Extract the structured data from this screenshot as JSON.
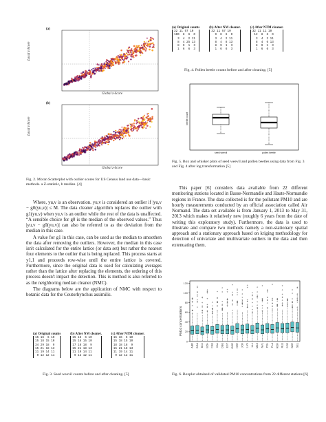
{
  "left_column": {
    "figure2": {
      "panel_a_label": "(a)",
      "panel_b_label": "(b)",
      "ylabel": "Local z-Score",
      "xlabel": "Global z-Score",
      "caption": "Fig. 2.   Moran Scatterplot with outlier scores for US Census land use data—basic methods. a Z-statistic, b median. [4]"
    },
    "paragraph1": "Where, yu,v is an observation. yu,v is considered an outlier if |yu,v − g0(yu,v)| ≤ M. The data cleaner algorithm replaces the outlier with g1(yu,v) when yu,v is an outlier while the rest of the data is unaffected. “A sensible choice for g0 is the median of the observed values.” Thus |yu,v − g0(yu,v)| can also be referred to as the deviation from the median in this case.",
    "paragraph2": "A value for g1 in this case, can be used as the median to smoothen the data after removing the outliers. However, the median in this case isn't calculated for the entire lattice (or data set) but rather the nearest four elements to the outlier that is being replaced. This process starts at y1,1 and proceeds row-wise until the entire lattice is covered. Furthermore, since the original data is used for calculating averages rather than the lattice after replacing the elements, the ordering of this process doesn't impact the detection. This is method is also referred to as the neighboring median cleaner (NMC).",
    "paragraph3": "The diagrams below are the application of NMC with respect to botanic data for the Ceutorhynchus assimilis.",
    "figure3": {
      "labels": [
        "(a) Original counts",
        "(b) After NM cleaner.",
        "(c) After NTM cleaner."
      ],
      "matrices": [
        "15 16  6 10\n15 18 15 10\n34 29 18  9\n15 21 18 13\n11 19 14 11\n 9 12 12 11",
        "15 16  6 10\n15 18 15 10\n17 18 18  9\n15 21 18 13\n11 19 14 11\n 9 12 12 11",
        "15 16  6 10\n15 18 15 10\n18 18 18  9\n15 21 18 13\n11 19 14 11\n 9 12 12 11"
      ],
      "caption": "Fig. 3.   Seed weevil counts before and after cleaning. [5]"
    }
  },
  "right_column": {
    "figure4": {
      "labels": [
        "(a) Original counts",
        "(b) After NM cleaner.",
        "(c) After NTM cleaner."
      ],
      "matrices": [
        "32 11 57 10\n100  8  6  0\n  3  4  2 11\n  8  4 25 13\n  8  9  1  3\n  1  6  6  3",
        "32 11 57 10\n  9  8  6  0\n  3  4  2 11\n  8  4  8 13\n  8  9  1  3\n  1  6  6  3",
        "32 11 11 10\n 12  8  6  0\n  3  4  2 11\n  8  4  6 13\n  8  9  1  3\n  1  6  6  3"
      ],
      "caption": "Fig. 4.   Pollen beetle counts before and after cleaning. [5]"
    },
    "figure5": {
      "ylabel": "beetle count",
      "xlabels": [
        "seed weevil",
        "pollen beetle"
      ],
      "caption": "Fig. 5.   Box and whisker plots of seed weevil and pollen beetles using data from Fig. 3 and Fig. 4 after log transformation [5]"
    },
    "paragraph4": "This paper [6] considers data available from 22 different monitoring stations located in Basse-Normandie and Haute-Normandie regions in France. The data collected is for the pollutant PM10 and are hourly measurements conducted by an official association called Air Normand. The data set available is from January 1, 2013 to May 31, 2013 which makes it relatively new (roughly 6 years from the date of writing this exploratory study). Furthermore, the data is used to illustrate and compare two methods namely a non-stationary spatial approach and a stationary approach based on kriging methodology for detection of univariate and multivariate outliers in the data and then extenuating them.",
    "figure6": {
      "ylabel": "PM10 concentrations",
      "yticks": [
        "0",
        "20",
        "40",
        "60",
        "80",
        "100",
        "120"
      ],
      "stations": [
        "ABR",
        "BDA",
        "BCJ",
        "BZH",
        "CAE",
        "CAL",
        "DBE",
        "EST",
        "GOR",
        "HRR",
        "JCR",
        "LHV",
        "LLL",
        "MAS",
        "NVL",
        "PJH",
        "PLA",
        "RDR",
        "RLE",
        "SCE",
        "SDR",
        "SEL"
      ],
      "medians": [
        22,
        23,
        21,
        24,
        22,
        25,
        23,
        24,
        22,
        26,
        24,
        25,
        23,
        27,
        24,
        26,
        25,
        28,
        26,
        27,
        29,
        28
      ],
      "q1": [
        15,
        16,
        14,
        17,
        15,
        17,
        16,
        16,
        15,
        18,
        16,
        17,
        16,
        18,
        16,
        18,
        17,
        19,
        18,
        18,
        20,
        19
      ],
      "q3": [
        32,
        33,
        30,
        34,
        31,
        35,
        33,
        34,
        32,
        37,
        34,
        36,
        33,
        38,
        34,
        37,
        35,
        39,
        37,
        38,
        40,
        39
      ],
      "fill_color": "#5bbfc4",
      "caption": "Fig. 6.   Boxplot obtained of validated PM10 concentrations from 22 different stations [6]"
    }
  }
}
